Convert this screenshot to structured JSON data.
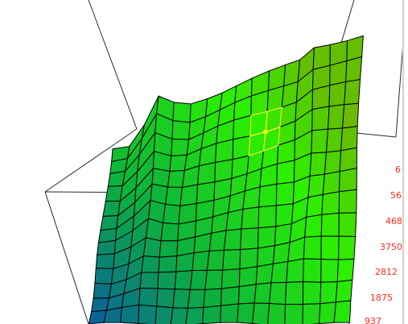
{
  "axis_labels": {
    "color": "#ff2a1a",
    "items": [
      "6",
      "56",
      "468",
      "3750",
      "2812",
      "1875",
      "937"
    ]
  },
  "surface": {
    "colors": {
      "low": "#0a2fd6",
      "mid": "#0cb23c",
      "high": "#7fa800",
      "peak": "#2cf000",
      "grid": "#000000",
      "highlight": "#f2ff33"
    }
  },
  "cursor": {
    "color": "#ffff00"
  },
  "frame": {
    "color": "#2a2a2a"
  }
}
